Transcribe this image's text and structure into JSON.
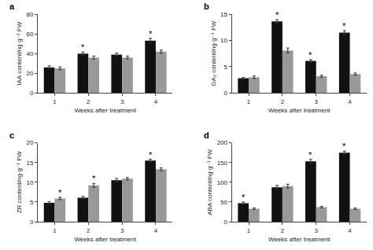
{
  "chart_data": [
    {
      "type": "bar",
      "title": "a",
      "x_label": "Weeks after treatment",
      "y_label": "IAA content/ng·g⁻¹ FW",
      "categories": [
        "1",
        "2",
        "3",
        "4"
      ],
      "series": [
        {
          "color": "#111111",
          "values": [
            26,
            40,
            39,
            53
          ],
          "errors": [
            1.5,
            1.5,
            1.5,
            2.5
          ]
        },
        {
          "color": "#999999",
          "values": [
            25,
            36,
            36,
            42
          ],
          "errors": [
            1.5,
            1.5,
            1.5,
            1.5
          ]
        }
      ],
      "ylim": [
        0,
        80
      ],
      "yticks": [
        0,
        20,
        40,
        60,
        80
      ],
      "grid": false,
      "annotations": [
        {
          "text": "*",
          "category": "2",
          "series": 0
        },
        {
          "text": "*",
          "category": "4",
          "series": 0
        }
      ]
    },
    {
      "type": "bar",
      "title": "b",
      "x_label": "Weeks after treatment",
      "y_label": "GA₃ content/ng·g⁻¹ FW",
      "categories": [
        "1",
        "2",
        "3",
        "4"
      ],
      "series": [
        {
          "color": "#111111",
          "values": [
            2.8,
            13.6,
            6.1,
            11.5
          ],
          "errors": [
            0.15,
            0.35,
            0.25,
            0.35
          ]
        },
        {
          "color": "#999999",
          "values": [
            3.0,
            8.1,
            3.2,
            3.6
          ],
          "errors": [
            0.25,
            0.45,
            0.2,
            0.2
          ]
        }
      ],
      "ylim": [
        0,
        15
      ],
      "yticks": [
        0,
        5,
        10,
        15
      ],
      "grid": false,
      "annotations": [
        {
          "text": "*",
          "category": "2",
          "series": 0
        },
        {
          "text": "*",
          "category": "3",
          "series": 0
        },
        {
          "text": "*",
          "category": "4",
          "series": 0
        }
      ]
    },
    {
      "type": "bar",
      "title": "c",
      "x_label": "Weeks after treatment",
      "y_label": "ZR content/ng·g⁻¹ FW",
      "categories": [
        "1",
        "2",
        "3",
        "4"
      ],
      "series": [
        {
          "color": "#111111",
          "values": [
            4.8,
            6.1,
            10.5,
            15.5
          ],
          "errors": [
            0.3,
            0.3,
            0.45,
            0.35
          ]
        },
        {
          "color": "#999999",
          "values": [
            5.9,
            9.2,
            10.9,
            13.3
          ],
          "errors": [
            0.3,
            0.5,
            0.3,
            0.35
          ]
        }
      ],
      "ylim": [
        0,
        20
      ],
      "yticks": [
        0,
        5,
        10,
        15,
        20
      ],
      "grid": false,
      "annotations": [
        {
          "text": "*",
          "category": "4",
          "series": 0
        },
        {
          "text": "*",
          "category": "1",
          "series": 1
        },
        {
          "text": "*",
          "category": "2",
          "series": 1
        }
      ]
    },
    {
      "type": "bar",
      "title": "d",
      "x_label": "Weeks after treatment",
      "y_label": "ABA content/ng·g⁻¹ FW",
      "categories": [
        "1",
        "2",
        "3",
        "4"
      ],
      "series": [
        {
          "color": "#111111",
          "values": [
            47,
            87,
            153,
            175
          ],
          "errors": [
            3,
            5,
            5,
            4
          ]
        },
        {
          "color": "#999999",
          "values": [
            33,
            90,
            37,
            33
          ],
          "errors": [
            2,
            5,
            2,
            2
          ]
        }
      ],
      "ylim": [
        0,
        200
      ],
      "yticks": [
        0,
        50,
        100,
        150,
        200
      ],
      "grid": false,
      "annotations": [
        {
          "text": "*",
          "category": "1",
          "series": 0
        },
        {
          "text": "*",
          "category": "3",
          "series": 0
        },
        {
          "text": "*",
          "category": "4",
          "series": 0
        }
      ]
    }
  ]
}
